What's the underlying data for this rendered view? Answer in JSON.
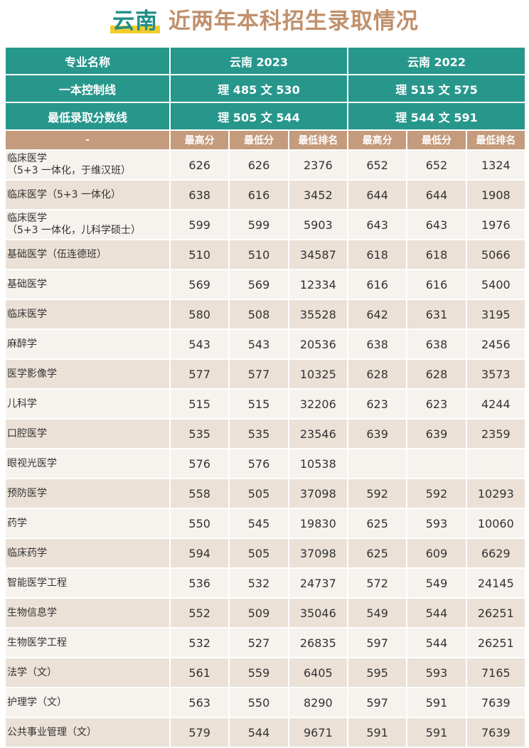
{
  "title": {
    "highlight": "云南",
    "rest": " 近两年本科招生录取情况"
  },
  "header": {
    "major_label": "专业名称",
    "y2023": "云南 2023",
    "y2022": "云南 2022",
    "control_label": "一本控制线",
    "control_2023": "理 485 文 530",
    "control_2022": "理 515 文 575",
    "min_label": "最低录取分数线",
    "min_2023": "理 505 文 544",
    "min_2022": "理 544 文 591",
    "dash": "-",
    "max": "最高分",
    "min": "最低分",
    "rank": "最低排名"
  },
  "rows": [
    {
      "name": "临床医学\n（5+3 一体化，于维汉班）",
      "v": [
        "626",
        "626",
        "2376",
        "652",
        "652",
        "1324"
      ]
    },
    {
      "name": "临床医学（5+3 一体化）",
      "v": [
        "638",
        "616",
        "3452",
        "644",
        "644",
        "1908"
      ]
    },
    {
      "name": "临床医学\n（5+3 一体化，儿科学硕士）",
      "v": [
        "599",
        "599",
        "5903",
        "643",
        "643",
        "1976"
      ]
    },
    {
      "name": "基础医学（伍连德班）",
      "v": [
        "510",
        "510",
        "34587",
        "618",
        "618",
        "5066"
      ]
    },
    {
      "name": "基础医学",
      "v": [
        "569",
        "569",
        "12334",
        "616",
        "616",
        "5400"
      ]
    },
    {
      "name": "临床医学",
      "v": [
        "580",
        "508",
        "35528",
        "642",
        "631",
        "3195"
      ]
    },
    {
      "name": "麻醉学",
      "v": [
        "543",
        "543",
        "20536",
        "638",
        "638",
        "2456"
      ]
    },
    {
      "name": "医学影像学",
      "v": [
        "577",
        "577",
        "10325",
        "628",
        "628",
        "3573"
      ]
    },
    {
      "name": "儿科学",
      "v": [
        "515",
        "515",
        "32206",
        "623",
        "623",
        "4244"
      ]
    },
    {
      "name": "口腔医学",
      "v": [
        "535",
        "535",
        "23546",
        "639",
        "639",
        "2359"
      ]
    },
    {
      "name": "眼视光医学",
      "v": [
        "576",
        "576",
        "10538",
        "",
        "",
        ""
      ]
    },
    {
      "name": "预防医学",
      "v": [
        "558",
        "505",
        "37098",
        "592",
        "592",
        "10293"
      ]
    },
    {
      "name": "药学",
      "v": [
        "550",
        "545",
        "19830",
        "625",
        "593",
        "10060"
      ]
    },
    {
      "name": "临床药学",
      "v": [
        "594",
        "505",
        "37098",
        "625",
        "609",
        "6629"
      ]
    },
    {
      "name": "智能医学工程",
      "v": [
        "536",
        "532",
        "24737",
        "572",
        "549",
        "24145"
      ]
    },
    {
      "name": "生物信息学",
      "v": [
        "552",
        "509",
        "35046",
        "549",
        "544",
        "26251"
      ]
    },
    {
      "name": "生物医学工程",
      "v": [
        "532",
        "527",
        "26835",
        "597",
        "544",
        "26251"
      ]
    },
    {
      "name": "法学（文）",
      "v": [
        "561",
        "559",
        "6405",
        "595",
        "593",
        "7165"
      ]
    },
    {
      "name": "护理学（文）",
      "v": [
        "563",
        "550",
        "8290",
        "597",
        "591",
        "7639"
      ]
    },
    {
      "name": "公共事业管理（文）",
      "v": [
        "579",
        "544",
        "9671",
        "591",
        "591",
        "7639"
      ]
    }
  ],
  "colors": {
    "teal": "#27978c",
    "tan": "#c49b7c",
    "title": "#c0906c",
    "highlight": "#f2cc2c"
  }
}
